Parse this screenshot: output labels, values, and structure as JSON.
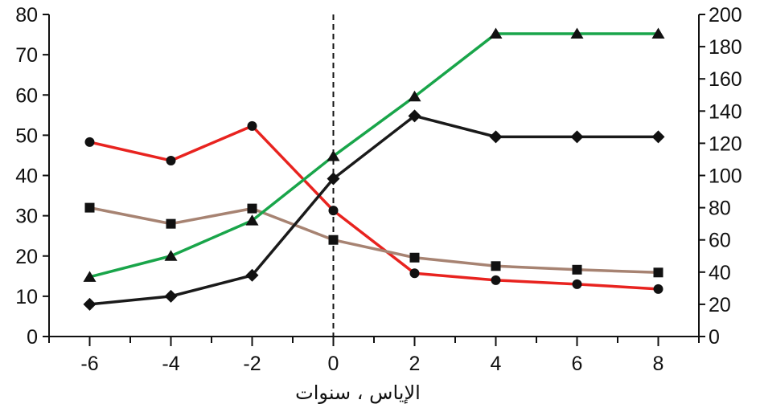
{
  "chart_data": {
    "type": "line",
    "xlabel": "الإياس ، سنوات",
    "x_ticks": [
      -6,
      -4,
      -2,
      0,
      2,
      4,
      6,
      8
    ],
    "xlim": [
      -7,
      9
    ],
    "reference_line": {
      "x": 0,
      "style": "dashed"
    },
    "y_left": {
      "lim": [
        0,
        80
      ],
      "ticks": [
        0,
        10,
        20,
        30,
        40,
        50,
        60,
        70,
        80
      ]
    },
    "y_right": {
      "lim": [
        0,
        200
      ],
      "ticks": [
        0,
        20,
        40,
        60,
        80,
        100,
        120,
        140,
        160,
        180,
        200
      ]
    },
    "grid": false,
    "series": [
      {
        "axis": "left",
        "marker": "circle",
        "color": "#e8231f",
        "x": [
          -6,
          -4,
          -2,
          0,
          2,
          4,
          6,
          8
        ],
        "y": [
          48.3,
          43.7,
          52.3,
          31.3,
          15.7,
          14.0,
          13.0,
          11.8
        ]
      },
      {
        "axis": "left",
        "marker": "square",
        "color": "#a78372",
        "x": [
          -6,
          -4,
          -2,
          0,
          2,
          4,
          6,
          8
        ],
        "y": [
          32.0,
          28.0,
          31.8,
          24.0,
          19.6,
          17.5,
          16.6,
          15.9
        ]
      },
      {
        "axis": "right",
        "marker": "triangle",
        "color": "#19a54a",
        "x": [
          -6,
          -4,
          -2,
          0,
          2,
          4,
          6,
          8
        ],
        "y": [
          37,
          50,
          72,
          112,
          149,
          188,
          188,
          188
        ]
      },
      {
        "axis": "right",
        "marker": "diamond",
        "color": "#1a1a1a",
        "x": [
          -6,
          -4,
          -2,
          0,
          2,
          4,
          6,
          8
        ],
        "y": [
          20,
          25,
          38,
          98,
          137,
          124,
          124,
          124
        ]
      }
    ]
  }
}
